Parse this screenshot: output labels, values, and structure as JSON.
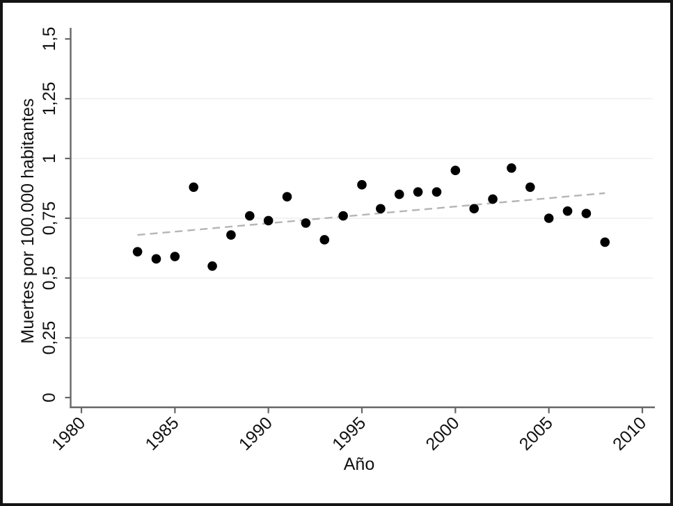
{
  "colors": {
    "background": "#ffffff",
    "border": "#141414",
    "axis": "#666666",
    "grid": "#ededed",
    "label": "#111111",
    "marker": "#000000",
    "trend": "#b5b5b5"
  },
  "chart_data": {
    "type": "scatter",
    "title": "",
    "xlabel": "Año",
    "ylabel": "Muertes por 100.000 habitantes",
    "legend_position": "none",
    "grid": "horizontal",
    "xlim": [
      1979.4,
      2010.6
    ],
    "ylim": [
      -0.05,
      1.54
    ],
    "x_ticks": [
      1980,
      1985,
      1990,
      1995,
      2000,
      2005,
      2010
    ],
    "x_tick_labels": [
      "1980",
      "1985",
      "1990",
      "1995",
      "2000",
      "2005",
      "2010"
    ],
    "y_ticks": [
      0,
      0.25,
      0.5,
      0.75,
      1,
      1.25,
      1.5
    ],
    "y_tick_labels": [
      "0",
      "0,25",
      "0,5",
      "0,75",
      "1",
      "1,25",
      "1,5"
    ],
    "grid_values": [
      0.25,
      0.5,
      0.75,
      1,
      1.25
    ],
    "series": [
      {
        "marker": "circle",
        "color": "#000000",
        "x": [
          1983,
          1984,
          1985,
          1986,
          1987,
          1988,
          1989,
          1990,
          1991,
          1992,
          1993,
          1994,
          1995,
          1996,
          1997,
          1998,
          1999,
          2000,
          2001,
          2002,
          2003,
          2004,
          2005,
          2006,
          2007,
          2008
        ],
        "y": [
          0.61,
          0.58,
          0.59,
          0.88,
          0.55,
          0.68,
          0.76,
          0.74,
          0.84,
          0.73,
          0.66,
          0.76,
          0.89,
          0.79,
          0.85,
          0.86,
          0.86,
          0.95,
          0.79,
          0.83,
          0.96,
          0.88,
          0.75,
          0.78,
          0.77,
          0.65
        ]
      }
    ],
    "trend_line": {
      "style": "dashed",
      "color": "#b5b5b5",
      "x": [
        1983,
        2008
      ],
      "y": [
        0.68,
        0.855
      ]
    }
  }
}
